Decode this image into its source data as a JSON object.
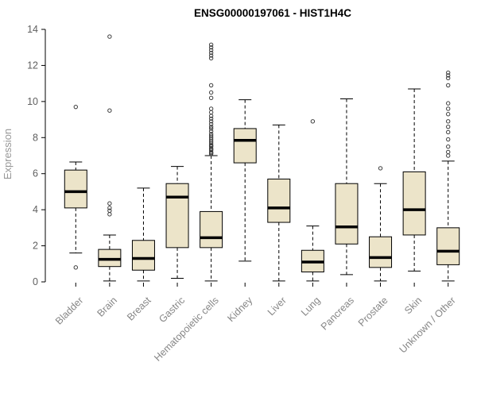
{
  "chart_data": {
    "type": "boxplot",
    "title": "ENSG00000197061 - HIST1H4C",
    "ylabel": "Expression",
    "xlabel": "",
    "ylim": [
      0,
      14
    ],
    "yticks": [
      0,
      2,
      4,
      6,
      8,
      10,
      12,
      14
    ],
    "grid": false,
    "legend": false,
    "box_fill_color": "#ece4c9",
    "box_stroke_color": "#000000",
    "median_color": "#000000",
    "outlier_color": "#3d3d3d",
    "categories": [
      "Bladder",
      "Brain",
      "Breast",
      "Gastric",
      "Hematopoietic cells",
      "Kidney",
      "Liver",
      "Lung",
      "Pancreas",
      "Prostate",
      "Skin",
      "Unknown / Other"
    ],
    "boxes": [
      {
        "category": "Bladder",
        "low": 1.6,
        "q1": 4.1,
        "median": 5.0,
        "q3": 6.2,
        "high": 6.65,
        "outliers": [
          0.8,
          9.7
        ]
      },
      {
        "category": "Brain",
        "low": 0.05,
        "q1": 0.85,
        "median": 1.25,
        "q3": 1.8,
        "high": 2.6,
        "outliers": [
          3.75,
          3.95,
          4.1,
          4.35,
          9.5,
          13.6
        ]
      },
      {
        "category": "Breast",
        "low": 0.05,
        "q1": 0.65,
        "median": 1.3,
        "q3": 2.3,
        "high": 5.2,
        "outliers": []
      },
      {
        "category": "Gastric",
        "low": 0.2,
        "q1": 1.9,
        "median": 4.7,
        "q3": 5.45,
        "high": 6.4,
        "outliers": []
      },
      {
        "category": "Hematopoietic cells",
        "low": 0.05,
        "q1": 1.9,
        "median": 2.45,
        "q3": 3.9,
        "high": 7.0,
        "outliers": [
          7.1,
          7.15,
          7.2,
          7.3,
          7.35,
          7.4,
          7.5,
          7.55,
          7.6,
          7.7,
          7.8,
          7.9,
          8.0,
          8.1,
          8.2,
          8.35,
          8.5,
          8.6,
          8.75,
          8.9,
          9.05,
          9.2,
          9.4,
          9.6,
          10.2,
          10.5,
          10.9,
          12.4,
          12.55,
          12.7,
          12.85,
          13.0,
          13.15
        ]
      },
      {
        "category": "Kidney",
        "low": 1.15,
        "q1": 6.6,
        "median": 7.85,
        "q3": 8.5,
        "high": 10.1,
        "outliers": []
      },
      {
        "category": "Liver",
        "low": 0.05,
        "q1": 3.3,
        "median": 4.1,
        "q3": 5.7,
        "high": 8.7,
        "outliers": []
      },
      {
        "category": "Lung",
        "low": 0.05,
        "q1": 0.55,
        "median": 1.1,
        "q3": 1.75,
        "high": 3.1,
        "outliers": [
          8.9
        ]
      },
      {
        "category": "Pancreas",
        "low": 0.4,
        "q1": 2.1,
        "median": 3.05,
        "q3": 5.45,
        "high": 10.15,
        "outliers": []
      },
      {
        "category": "Prostate",
        "low": 0.05,
        "q1": 0.8,
        "median": 1.35,
        "q3": 2.5,
        "high": 5.45,
        "outliers": [
          6.3
        ]
      },
      {
        "category": "Skin",
        "low": 0.6,
        "q1": 2.6,
        "median": 4.0,
        "q3": 6.1,
        "high": 10.7,
        "outliers": []
      },
      {
        "category": "Unknown / Other",
        "low": 0.05,
        "q1": 0.95,
        "median": 1.7,
        "q3": 3.0,
        "high": 6.7,
        "outliers": [
          7.0,
          7.2,
          7.5,
          7.9,
          8.3,
          8.6,
          8.9,
          9.3,
          9.6,
          9.9,
          10.9,
          11.3,
          11.45,
          11.6
        ]
      }
    ]
  }
}
